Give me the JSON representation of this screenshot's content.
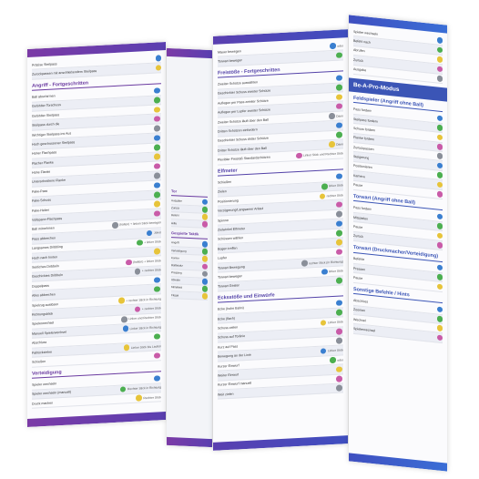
{
  "colors": {
    "purple": "#6a3aa0",
    "indigo": "#5342a8",
    "blue": "#3b55b6",
    "button_blue": "#3a7fd0",
    "button_green": "#4caf50",
    "button_yellow": "#e7c43a",
    "button_pink": "#c95ba8"
  },
  "panel1": {
    "top_rows": [
      {
        "label": "Präzise Steilpass",
        "value": ""
      },
      {
        "label": "Zurückpassen mit anschließendem Steilpass",
        "value": ""
      }
    ],
    "section_attack": "Angriff - Fortgeschritten",
    "attack_rows": [
      {
        "label": "Ball abschirmen",
        "value": ""
      },
      {
        "label": "Gefühlter Torschuss",
        "value": ""
      },
      {
        "label": "Gefühlter Steilpass",
        "value": ""
      },
      {
        "label": "Steilpass durch die",
        "value": ""
      },
      {
        "label": "Wichtiger Steilpass ins Aus",
        "value": ""
      },
      {
        "label": "Hoch geschossener Steilpass",
        "value": ""
      },
      {
        "label": "Hoher Flachpass",
        "value": ""
      },
      {
        "label": "Flacher Flanke",
        "value": ""
      },
      {
        "label": "Hohe Flanke",
        "value": ""
      },
      {
        "label": "Unterschnittene Flanke",
        "value": ""
      },
      {
        "label": "Fake-Pass",
        "value": ""
      },
      {
        "label": "Fake-Schuss",
        "value": ""
      },
      {
        "label": "Fake-Heber",
        "value": ""
      },
      {
        "label": "Vollspann-Flachpass",
        "value": ""
      },
      {
        "label": "Ball mitnehmen",
        "value": "(halten) + linken Stick bewegen"
      },
      {
        "label": "Pass abbrechen",
        "value": "Joker"
      },
      {
        "label": "Langsames Dribbling",
        "value": "+ linker Stick"
      },
      {
        "label": "Hoch nach hinten",
        "value": ""
      },
      {
        "label": "Seitliches Dribbeln",
        "value": "(halten) + linker Stick"
      },
      {
        "label": "Geschicktes Dribbeln",
        "value": "+ rechter Stick"
      },
      {
        "label": "Doppelpass",
        "value": ""
      },
      {
        "label": "Alles abbrechen",
        "value": ""
      },
      {
        "label": "Spielzug auslösen",
        "value": "+ rechter Stick in Richtung"
      },
      {
        "label": "Richtungsblick",
        "value": "+ rechter Stick"
      },
      {
        "label": "Spielerwechsel",
        "value": "Linker und Rechter Stick"
      },
      {
        "label": "Manuell Spielerwechsel",
        "value": "Linker Stick in Richtung"
      },
      {
        "label": "Abschluss",
        "value": ""
      },
      {
        "label": "Fallrückzieher",
        "value": "Linker Stick bis Laufen"
      },
      {
        "label": "Schießen",
        "value": ""
      }
    ],
    "section_defense": "Verteidigung",
    "defense_rows": [
      {
        "label": "Spieler wechseln",
        "value": ""
      },
      {
        "label": "Spieler wechseln (manuell)",
        "value": "Rechter Stick in Richtung"
      },
      {
        "label": "Druck machen",
        "value": "Rechter Stick"
      }
    ]
  },
  "panel2": {
    "section_a": "Tor",
    "rows_a": [
      "Ausgabe",
      "Zurück",
      "Befehl",
      "Hilfe"
    ],
    "section_b": "Gespielte Taktik",
    "rows_b": [
      "Angriff",
      "Verteidigung",
      "Konter",
      "Ballbesitz",
      "Pressing",
      "Abwehr",
      "Mittelfeld",
      "Flügel"
    ]
  },
  "panel3": {
    "top_rows": [
      {
        "label": "Mauer bewegen",
        "value": "oder"
      },
      {
        "label": "Torwart bewegen",
        "value": ""
      }
    ],
    "section_freekick": "Freistöße - Fortgeschritten",
    "freekick_rows": [
      {
        "label": "Zweiter Schütze auswählen",
        "value": ""
      },
      {
        "label": "Geschickter Schuss zweiter Schütze",
        "value": ""
      },
      {
        "label": "Auflegen per Pass zweiter Schütze",
        "value": ""
      },
      {
        "label": "Auflegen per Lupfer zweiter Schütze",
        "value": ""
      },
      {
        "label": "Zweiter Schütze läuft über den Ball",
        "value": "Dann"
      },
      {
        "label": "Dritten Schützen einfordern",
        "value": ""
      },
      {
        "label": "Geschickter Schuss dritter Schütze",
        "value": ""
      },
      {
        "label": "Dritter Schütze läuft über den Ball",
        "value": "Dann"
      },
      {
        "label": "Flexibler Freistoß Standardschützen",
        "value": "Linker Stick und Rechter Stick"
      }
    ],
    "section_penalty": "Elfmeter",
    "penalty_rows": [
      {
        "label": "Schießen",
        "value": ""
      },
      {
        "label": "Zielen",
        "value": "linker Stick"
      },
      {
        "label": "Positionierung",
        "value": "rechter Stick"
      },
      {
        "label": "Verzögerung/Langsamer Anlauf",
        "value": ""
      },
      {
        "label": "Spinner",
        "value": ""
      },
      {
        "label": "Zielwinkel Elfmeter",
        "value": ""
      },
      {
        "label": "Schüssen wählen",
        "value": ""
      },
      {
        "label": "Bogen treffen",
        "value": ""
      },
      {
        "label": "Lupfer",
        "value": ""
      },
      {
        "label": "Torwart Bewegung",
        "value": "rechter Stick (in Richtung)"
      },
      {
        "label": "Torwart bewegen",
        "value": "linker Stick"
      },
      {
        "label": "Torwart Gesten",
        "value": ""
      }
    ],
    "section_corner": "Ecksstöße und Einwürfe",
    "corner_rows": [
      {
        "label": "Ecke (hohe Bahn)",
        "value": ""
      },
      {
        "label": "Ecke (flach)",
        "value": ""
      },
      {
        "label": "Schuss zielen",
        "value": "Linker Stick"
      },
      {
        "label": "Schuss auf Torlinie",
        "value": ""
      },
      {
        "label": "Kurz auf Pass",
        "value": ""
      },
      {
        "label": "Bewegung an der Linie",
        "value": "Linker Stick"
      },
      {
        "label": "Kurzer Einwurf",
        "value": "oder"
      },
      {
        "label": "Weiter Einwurf",
        "value": ""
      },
      {
        "label": "Kurzer Einwurf manuell",
        "value": ""
      },
      {
        "label": "Weit zielen",
        "value": ""
      }
    ]
  },
  "panel4": {
    "top_rows": [
      "Spieler wechseln",
      "Befehl nach",
      "Abrufen",
      "Zurück",
      "Ausgabe"
    ],
    "mode_title": "Be-A-Pro-Modus",
    "section_field": "Feldspieler (Angriff ohne Ball)",
    "field_rows": [
      "Pass fordern",
      "Steilpass fordern",
      "Schuss fordern",
      "Flanke fordern",
      "Zurückpassen",
      "Steigerung",
      "Positionieren",
      "Kamera",
      "Pause"
    ],
    "section_attack": "Torwart (Angriff ohne Ball)",
    "attack_rows": [
      "Pass fordern",
      "Mitspielen",
      "Pause",
      "Zurück"
    ],
    "section_defense": "Torwart (Druckmacher/Verteidigung)",
    "defense_rows": [
      "Befehle",
      "Pressen",
      "Pause"
    ],
    "section_other": "Sonstige Befehle / Hints",
    "other_rows": [
      "Abschluss",
      "Zoomen",
      "Wechsel",
      "Spielerwechsel"
    ]
  }
}
